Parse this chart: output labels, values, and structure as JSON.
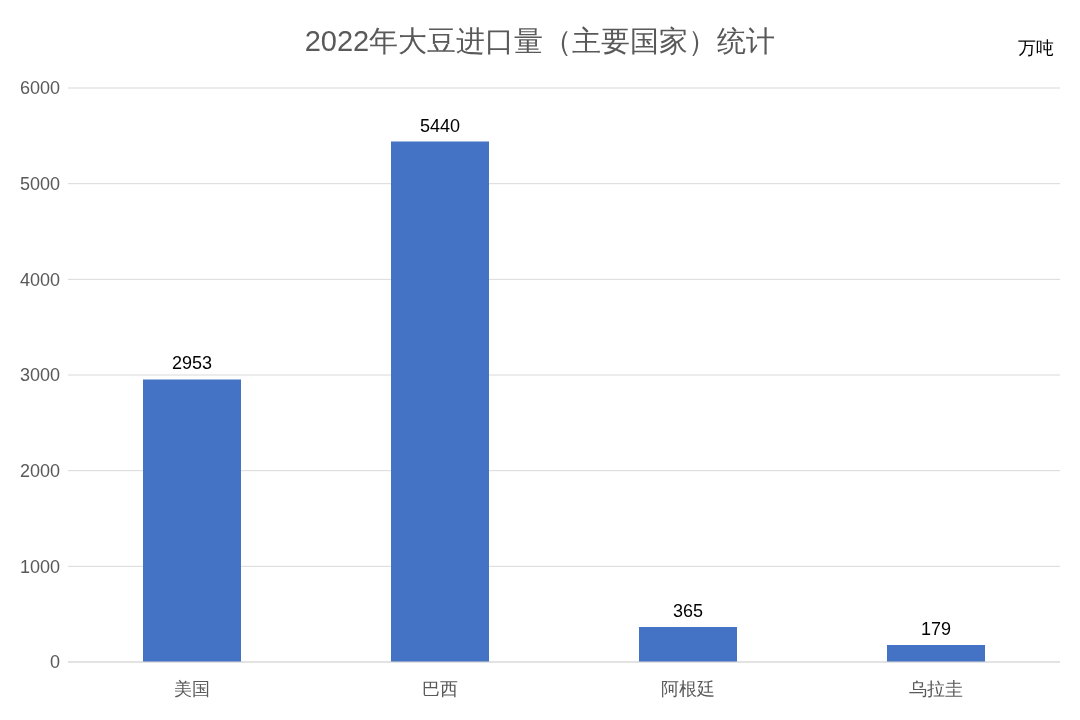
{
  "chart_data": {
    "type": "bar",
    "title": "2022年大豆进口量（主要国家）统计",
    "ylabel": "万吨",
    "categories": [
      "美国",
      "巴西",
      "阿根廷",
      "乌拉圭"
    ],
    "values": [
      2953,
      5440,
      365,
      179
    ],
    "color": "#4472c4",
    "ylim": [
      0,
      6000
    ],
    "yticks": [
      0,
      1000,
      2000,
      3000,
      4000,
      5000,
      6000
    ],
    "grid": "y",
    "data_labels": true
  }
}
